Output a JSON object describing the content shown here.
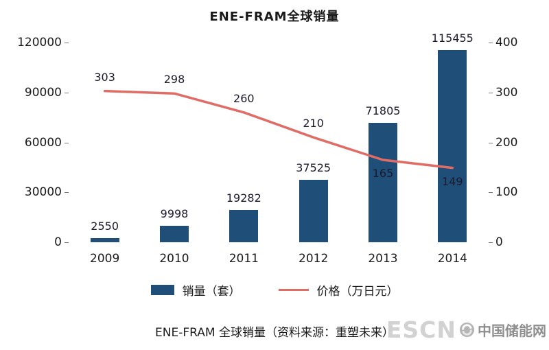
{
  "title": "ENE-FRAM全球销量",
  "caption": "ENE-FRAM 全球销量（资料来源：重塑未来）",
  "watermark": {
    "escn": "ESCN",
    "cn": "中国储能网"
  },
  "colors": {
    "bar": "#1F4E79",
    "line": "#E06C66",
    "text": "#1a1a1a"
  },
  "chart_data": {
    "type": "bar",
    "subtype": "bar+line combo, dual axis",
    "title": "ENE-FRAM全球销量",
    "categories": [
      "2009",
      "2010",
      "2011",
      "2012",
      "2013",
      "2014"
    ],
    "series": [
      {
        "name": "销量（套）",
        "type": "bar",
        "axis": "left",
        "color": "#1F4E79",
        "values": [
          2550,
          9998,
          19282,
          37525,
          71805,
          115455
        ]
      },
      {
        "name": "价格（万日元）",
        "type": "line",
        "axis": "right",
        "color": "#E06C66",
        "values": [
          303,
          298,
          260,
          210,
          165,
          149
        ]
      }
    ],
    "left_axis": {
      "min": 0,
      "max": 120000,
      "ticks": [
        0,
        30000,
        60000,
        90000,
        120000
      ]
    },
    "right_axis": {
      "min": 0,
      "max": 400,
      "ticks": [
        0,
        100,
        200,
        300,
        400
      ]
    },
    "line_label_positions": [
      "above",
      "above",
      "above",
      "above",
      "below",
      "below"
    ],
    "grid": false,
    "legend_position": "bottom",
    "data_labels": true
  }
}
